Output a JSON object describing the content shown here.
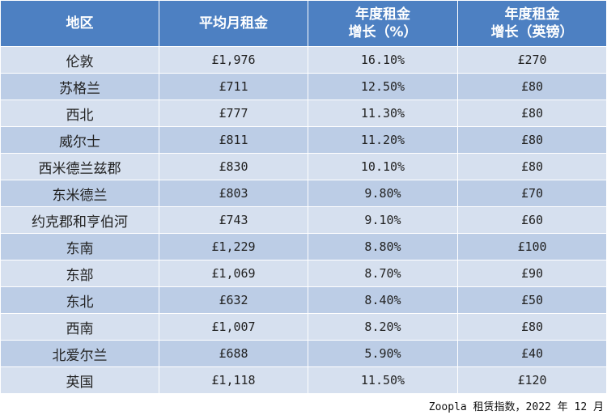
{
  "table": {
    "headers": [
      "地区",
      "平均月租金",
      "年度租金\n增长（%）",
      "年度租金\n增长（英镑）"
    ],
    "rows": [
      [
        "伦敦",
        "£1,976",
        "16.10%",
        "£270"
      ],
      [
        "苏格兰",
        "£711",
        "12.50%",
        "£80"
      ],
      [
        "西北",
        "£777",
        "11.30%",
        "£80"
      ],
      [
        "威尔士",
        "£811",
        "11.20%",
        "£80"
      ],
      [
        "西米德兰兹郡",
        "£830",
        "10.10%",
        "£80"
      ],
      [
        "东米德兰",
        "£803",
        "9.80%",
        "£70"
      ],
      [
        "约克郡和亨伯河",
        "£743",
        "9.10%",
        "£60"
      ],
      [
        "东南",
        "£1,229",
        "8.80%",
        "£100"
      ],
      [
        "东部",
        "£1,069",
        "8.70%",
        "£90"
      ],
      [
        "东北",
        "£632",
        "8.40%",
        "£50"
      ],
      [
        "西南",
        "£1,007",
        "8.20%",
        "£80"
      ],
      [
        "北爱尔兰",
        "£688",
        "5.90%",
        "£40"
      ],
      [
        "英国",
        "£1,118",
        "11.50%",
        "£120"
      ]
    ]
  },
  "source": "Zoopla 租赁指数，2022 年 12 月",
  "colors": {
    "header_bg": "#4d80c2",
    "row_light": "#d6e0ef",
    "row_dark": "#bccde6"
  }
}
